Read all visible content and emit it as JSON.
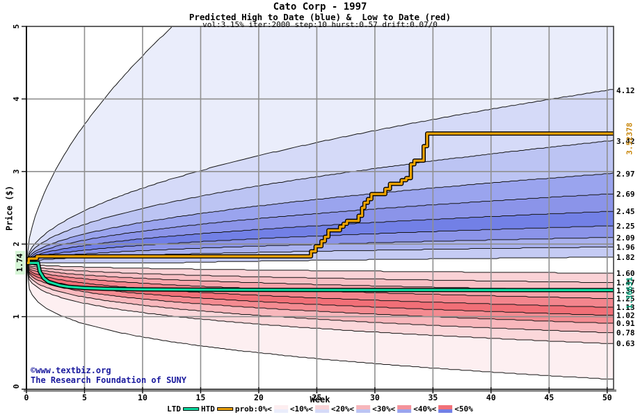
{
  "header": {
    "title": "Cato Corp - 1997",
    "subtitle": "Predicted High to Date (blue) &  Low to Date (red)",
    "params": "vol:3.15% iter:2000 step:10 hurst:0.57 drift:0.07/0"
  },
  "axes": {
    "y_label": "Price ($)",
    "x_label": "Week",
    "start_price_label": "1.74",
    "y_ticks": [
      0,
      1,
      2,
      3,
      4,
      5
    ],
    "x_ticks": [
      0,
      5,
      10,
      15,
      20,
      25,
      30,
      35,
      40,
      45,
      50
    ]
  },
  "annotations": {
    "htd_final_label": "3.52378",
    "ltd_final_label": "1.36631",
    "copyright": "©www.textbiz.org",
    "affiliation": "The Research Foundation of SUNY"
  },
  "legend": {
    "ltd_label": "LTD",
    "htd_label": "HTD",
    "prob_labels": [
      "prob:0%<",
      "<10%<",
      "<20%<",
      "<30%<",
      "<40%<",
      "<50%"
    ],
    "swatches": [
      [
        "#fdeef0",
        "#eaedfb"
      ],
      [
        "#f9d4d8",
        "#d5daf8"
      ],
      [
        "#f7b6bb",
        "#bcc4f3"
      ],
      [
        "#f4929a",
        "#9aa4ee"
      ],
      [
        "#f17078",
        "#7280e6"
      ]
    ]
  },
  "colors": {
    "htd": "#efa400",
    "ltd": "#0ddfa3",
    "htd_annotation": "#c8860a",
    "ltd_annotation": "#00a078",
    "copyright": "#1b1b9e",
    "grid": "#8f8f8f",
    "boundary_line": "#141414",
    "start_label_bg": "#d6f5d6"
  },
  "chart_data": {
    "type": "area",
    "title": "Cato Corp - 1997",
    "xlabel": "Week",
    "ylabel": "Price ($)",
    "x_range": [
      0,
      50.55
    ],
    "y_range": [
      0,
      5
    ],
    "grid": true,
    "start_price": 1.74,
    "htd_final": 3.52378,
    "ltd_final": 1.36631,
    "high_boundaries": [
      {
        "v50": 9.0,
        "p": 0.58
      },
      {
        "v50": 4.12,
        "p": 0.52,
        "label": "4.12"
      },
      {
        "v50": 3.42,
        "p": 0.5,
        "label": "3.42"
      },
      {
        "v50": 2.97,
        "p": 0.49,
        "label": "2.97"
      },
      {
        "v50": 2.69,
        "p": 0.48,
        "label": "2.69"
      },
      {
        "v50": 2.45,
        "p": 0.47,
        "label": "2.45"
      },
      {
        "v50": 2.25,
        "p": 0.46,
        "label": "2.25"
      },
      {
        "v50": 2.09,
        "p": 0.45,
        "label": "2.09"
      },
      {
        "v50": 1.96,
        "p": 0.45,
        "label": "1.96"
      },
      {
        "v50": 1.82,
        "p": 0.7,
        "flat_until": 13,
        "label": "1.82"
      }
    ],
    "low_boundaries": [
      {
        "v50": 1.6,
        "p": 0.4,
        "label": "1.60"
      },
      {
        "v50": 1.47,
        "p": 0.38,
        "label": "1.47"
      },
      {
        "v50": 1.36,
        "p": 0.36,
        "label": "1.36"
      },
      {
        "v50": 1.25,
        "p": 0.35,
        "label": "1.25"
      },
      {
        "v50": 1.13,
        "p": 0.34,
        "label": "1.13"
      },
      {
        "v50": 1.02,
        "p": 0.33,
        "label": "1.02"
      },
      {
        "v50": 0.91,
        "p": 0.32,
        "label": "0.91"
      },
      {
        "v50": 0.78,
        "p": 0.31,
        "label": "0.78"
      },
      {
        "v50": 0.63,
        "p": 0.3,
        "label": "0.63"
      },
      {
        "v50": 0.14,
        "p": 0.28
      }
    ],
    "band_colors_high": [
      "#eaedfb",
      "#d5daf8",
      "#bcc4f3",
      "#9aa4ee",
      "#8b94e9",
      "#7280e6",
      "#8b94e9",
      "#a9b1ee",
      "#c5cbf4"
    ],
    "band_colors_low": [
      "#fad2d6",
      "#f8bfc4",
      "#f6a3aa",
      "#f3858d",
      "#f16f77",
      "#f48b91",
      "#f8b7bc",
      "#fbd7da",
      "#fdeff1"
    ],
    "htd_steps": [
      [
        0,
        1.74
      ],
      [
        0.2,
        1.8
      ],
      [
        0.9,
        1.83
      ],
      [
        24.5,
        1.9
      ],
      [
        24.9,
        1.97
      ],
      [
        25.4,
        2.04
      ],
      [
        25.7,
        2.1
      ],
      [
        26,
        2.19
      ],
      [
        27,
        2.24
      ],
      [
        27.3,
        2.28
      ],
      [
        27.6,
        2.32
      ],
      [
        28.6,
        2.39
      ],
      [
        28.9,
        2.5
      ],
      [
        29.1,
        2.57
      ],
      [
        29.4,
        2.62
      ],
      [
        29.7,
        2.69
      ],
      [
        30.9,
        2.76
      ],
      [
        31.3,
        2.83
      ],
      [
        32.3,
        2.88
      ],
      [
        32.7,
        2.91
      ],
      [
        33.1,
        3.1
      ],
      [
        33.4,
        3.15
      ],
      [
        34.2,
        3.35
      ],
      [
        34.5,
        3.52378
      ],
      [
        50.55,
        3.52378
      ]
    ],
    "ltd_points": [
      [
        0,
        1.74
      ],
      [
        1.0,
        1.74
      ],
      [
        1.15,
        1.62
      ],
      [
        1.5,
        1.53
      ],
      [
        1.9,
        1.48
      ],
      [
        2.4,
        1.455
      ],
      [
        2.9,
        1.43
      ],
      [
        3.6,
        1.412
      ],
      [
        5,
        1.395
      ],
      [
        7,
        1.383
      ],
      [
        10,
        1.375
      ],
      [
        15,
        1.371
      ],
      [
        25,
        1.368
      ],
      [
        50.55,
        1.36631
      ]
    ]
  }
}
